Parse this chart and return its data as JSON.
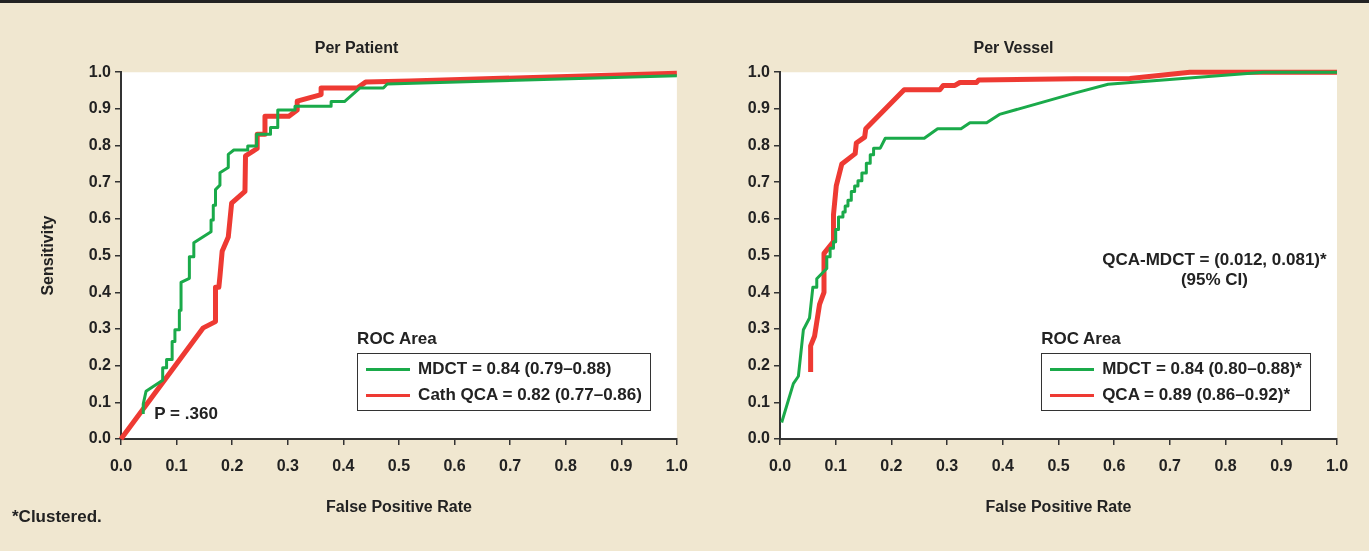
{
  "chart_data": [
    {
      "type": "line",
      "title": "Per Patient",
      "xlabel": "False Positive Rate",
      "ylabel": "Sensitivity",
      "legend_title": "ROC Area",
      "legend": "bottom right",
      "grid": false,
      "xlim": [
        0,
        1
      ],
      "ylim": [
        0,
        1
      ],
      "xticks": [
        {
          "value": 0,
          "label": "0.0"
        },
        {
          "value": 0.1,
          "label": "0.1"
        },
        {
          "value": 0.2,
          "label": "0.2"
        },
        {
          "value": 0.3,
          "label": "0.3"
        },
        {
          "value": 0.4,
          "label": "0.4"
        },
        {
          "value": 0.5,
          "label": "0.5"
        },
        {
          "value": 0.6,
          "label": "0.6"
        },
        {
          "value": 0.7,
          "label": "0.7"
        },
        {
          "value": 0.8,
          "label": "0.8"
        },
        {
          "value": 0.9,
          "label": "0.9"
        },
        {
          "value": 1,
          "label": "1.0"
        }
      ],
      "yticks": [
        {
          "value": 0,
          "label": "0.0"
        },
        {
          "value": 0.1,
          "label": "0.1"
        },
        {
          "value": 0.2,
          "label": "0.2"
        },
        {
          "value": 0.3,
          "label": "0.3"
        },
        {
          "value": 0.4,
          "label": "0.4"
        },
        {
          "value": 0.5,
          "label": "0.5"
        },
        {
          "value": 0.6,
          "label": "0.6"
        },
        {
          "value": 0.7,
          "label": "0.7"
        },
        {
          "value": 0.8,
          "label": "0.8"
        },
        {
          "value": 0.9,
          "label": "0.9"
        },
        {
          "value": 1,
          "label": "1.0"
        }
      ],
      "series": [
        {
          "name": "MDCT = 0.84 (0.79–0.88)",
          "color": "#1aaa4a",
          "x": [
            0.04,
            0.04,
            0.045,
            0.075,
            0.075,
            0.082,
            0.082,
            0.092,
            0.092,
            0.097,
            0.097,
            0.105,
            0.105,
            0.108,
            0.108,
            0.123,
            0.123,
            0.131,
            0.131,
            0.162,
            0.162,
            0.166,
            0.166,
            0.17,
            0.17,
            0.178,
            0.178,
            0.193,
            0.193,
            0.203,
            0.228,
            0.228,
            0.244,
            0.244,
            0.269,
            0.269,
            0.282,
            0.282,
            0.313,
            0.313,
            0.378,
            0.378,
            0.402,
            0.43,
            0.472,
            0.479,
            1.0
          ],
          "values": [
            0.068,
            0.095,
            0.13,
            0.16,
            0.194,
            0.194,
            0.217,
            0.217,
            0.266,
            0.266,
            0.298,
            0.298,
            0.351,
            0.351,
            0.427,
            0.438,
            0.497,
            0.497,
            0.535,
            0.565,
            0.597,
            0.597,
            0.637,
            0.637,
            0.68,
            0.692,
            0.726,
            0.74,
            0.776,
            0.788,
            0.788,
            0.799,
            0.799,
            0.831,
            0.831,
            0.849,
            0.849,
            0.897,
            0.897,
            0.907,
            0.907,
            0.92,
            0.92,
            0.957,
            0.957,
            0.968,
            0.99
          ]
        },
        {
          "name": "Cath QCA = 0.82 (0.77–0.86)",
          "color": "#ee3a33",
          "x": [
            0,
            0.148,
            0.17,
            0.17,
            0.176,
            0.178,
            0.182,
            0.193,
            0.199,
            0.223,
            0.224,
            0.245,
            0.245,
            0.259,
            0.259,
            0.302,
            0.317,
            0.317,
            0.36,
            0.36,
            0.425,
            0.44,
            0.52,
            1.0
          ],
          "values": [
            0,
            0.303,
            0.32,
            0.414,
            0.414,
            0.444,
            0.512,
            0.551,
            0.643,
            0.675,
            0.772,
            0.792,
            0.831,
            0.831,
            0.88,
            0.88,
            0.897,
            0.921,
            0.939,
            0.957,
            0.957,
            0.973,
            0.976,
            0.997
          ]
        }
      ],
      "annotations": [
        "P = .360",
        "*Clustered."
      ]
    },
    {
      "type": "line",
      "title": "Per Vessel",
      "xlabel": "False Positive Rate",
      "legend_title": "ROC Area",
      "legend": "bottom right",
      "grid": false,
      "xlim": [
        0,
        1
      ],
      "ylim": [
        0,
        1
      ],
      "xticks": [
        {
          "value": 0,
          "label": "0.0"
        },
        {
          "value": 0.1,
          "label": "0.1"
        },
        {
          "value": 0.2,
          "label": "0.2"
        },
        {
          "value": 0.3,
          "label": "0.3"
        },
        {
          "value": 0.4,
          "label": "0.4"
        },
        {
          "value": 0.5,
          "label": "0.5"
        },
        {
          "value": 0.6,
          "label": "0.6"
        },
        {
          "value": 0.7,
          "label": "0.7"
        },
        {
          "value": 0.8,
          "label": "0.8"
        },
        {
          "value": 0.9,
          "label": "0.9"
        },
        {
          "value": 1,
          "label": "1.0"
        }
      ],
      "yticks": [
        {
          "value": 0,
          "label": "0.0"
        },
        {
          "value": 0.1,
          "label": "0.1"
        },
        {
          "value": 0.2,
          "label": "0.2"
        },
        {
          "value": 0.3,
          "label": "0.3"
        },
        {
          "value": 0.4,
          "label": "0.4"
        },
        {
          "value": 0.5,
          "label": "0.5"
        },
        {
          "value": 0.6,
          "label": "0.6"
        },
        {
          "value": 0.7,
          "label": "0.7"
        },
        {
          "value": 0.8,
          "label": "0.8"
        },
        {
          "value": 0.9,
          "label": "0.9"
        },
        {
          "value": 1,
          "label": "1.0"
        }
      ],
      "series": [
        {
          "name": "MDCT = 0.84 (0.80–0.88)*",
          "color": "#1aaa4a",
          "x": [
            0.003,
            0.024,
            0.033,
            0.042,
            0.053,
            0.059,
            0.066,
            0.066,
            0.084,
            0.084,
            0.09,
            0.09,
            0.096,
            0.096,
            0.1,
            0.1,
            0.105,
            0.105,
            0.113,
            0.113,
            0.117,
            0.117,
            0.122,
            0.122,
            0.128,
            0.128,
            0.134,
            0.134,
            0.14,
            0.14,
            0.147,
            0.147,
            0.155,
            0.155,
            0.162,
            0.162,
            0.168,
            0.168,
            0.18,
            0.189,
            0.259,
            0.283,
            0.325,
            0.341,
            0.371,
            0.394,
            0.529,
            0.589,
            0.868,
            1.0
          ],
          "values": [
            0.045,
            0.151,
            0.171,
            0.298,
            0.33,
            0.414,
            0.414,
            0.437,
            0.465,
            0.497,
            0.497,
            0.52,
            0.52,
            0.538,
            0.538,
            0.571,
            0.571,
            0.605,
            0.605,
            0.619,
            0.619,
            0.635,
            0.635,
            0.651,
            0.651,
            0.675,
            0.675,
            0.69,
            0.69,
            0.704,
            0.704,
            0.725,
            0.725,
            0.752,
            0.752,
            0.775,
            0.775,
            0.793,
            0.793,
            0.82,
            0.82,
            0.846,
            0.846,
            0.862,
            0.862,
            0.885,
            0.943,
            0.967,
            1.0,
            1.0
          ]
        },
        {
          "name": "QCA = 0.89 (0.86–0.92)*",
          "color": "#ee3a33",
          "x": [
            0.055,
            0.055,
            0.062,
            0.071,
            0.079,
            0.079,
            0.096,
            0.096,
            0.101,
            0.111,
            0.135,
            0.137,
            0.152,
            0.154,
            0.223,
            0.287,
            0.293,
            0.314,
            0.323,
            0.353,
            0.357,
            0.529,
            0.628,
            0.736,
            1.0
          ],
          "values": [
            0.183,
            0.254,
            0.28,
            0.367,
            0.4,
            0.506,
            0.538,
            0.611,
            0.69,
            0.75,
            0.778,
            0.807,
            0.823,
            0.846,
            0.952,
            0.952,
            0.964,
            0.964,
            0.972,
            0.972,
            0.979,
            0.982,
            0.983,
            1.0,
            1.0
          ]
        }
      ],
      "annotations": [
        "QCA-MDCT = (0.012, 0.081)*\n(95% CI)"
      ]
    }
  ]
}
